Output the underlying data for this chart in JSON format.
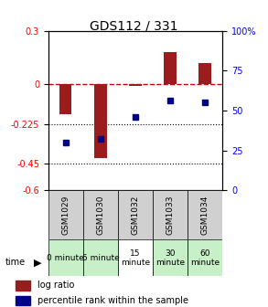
{
  "title": "GDS112 / 331",
  "samples": [
    "GSM1029",
    "GSM1030",
    "GSM1032",
    "GSM1033",
    "GSM1034"
  ],
  "log_ratios": [
    -0.17,
    -0.42,
    -0.01,
    0.18,
    0.12
  ],
  "percentile_ranks": [
    30,
    32,
    46,
    56,
    55
  ],
  "bar_color": "#9B1C1C",
  "dot_color": "#00008B",
  "ylim_left": [
    -0.6,
    0.3
  ],
  "ylim_right": [
    0,
    100
  ],
  "left_yticks": [
    0.3,
    0,
    -0.225,
    -0.45,
    -0.6
  ],
  "right_yticks": [
    100,
    75,
    50,
    25,
    0
  ],
  "time_labels": [
    "0 minute",
    "5 minute",
    "15\nminute",
    "30\nminute",
    "60\nminute"
  ],
  "time_colors": [
    "#c8f0c8",
    "#c8f0c8",
    "#ffffff",
    "#c8f0c8",
    "#c8f0c8"
  ],
  "sample_bg_color": "#d0d0d0",
  "hline_0_color": "#cc0000",
  "legend_bar_color": "#9B1C1C",
  "legend_dot_color": "#00008B",
  "figsize": [
    2.93,
    3.36
  ],
  "dpi": 100
}
